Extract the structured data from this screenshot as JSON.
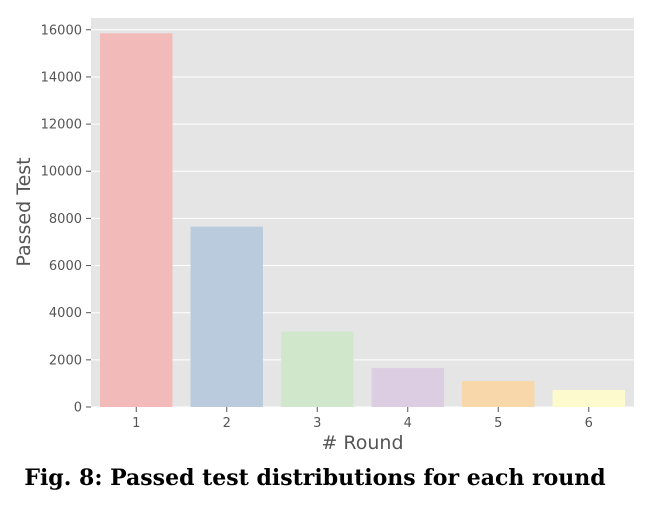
{
  "chart_data": {
    "type": "bar",
    "title": "",
    "xlabel": "# Round",
    "ylabel": "Passed Test",
    "categories": [
      "1",
      "2",
      "3",
      "4",
      "5",
      "6"
    ],
    "values": [
      15850,
      7650,
      3200,
      1650,
      1100,
      720
    ],
    "ylim": [
      0,
      16500
    ],
    "yticks": [
      0,
      2000,
      4000,
      6000,
      8000,
      10000,
      12000,
      14000,
      16000
    ],
    "grid": true,
    "colors": [
      "#f2bab8",
      "#bacbdd",
      "#d1e7cb",
      "#ddcde3",
      "#f8d8ab",
      "#fdfbce"
    ],
    "background": "#e5e5e5"
  },
  "caption": "Fig. 8: Passed test distributions for each round"
}
